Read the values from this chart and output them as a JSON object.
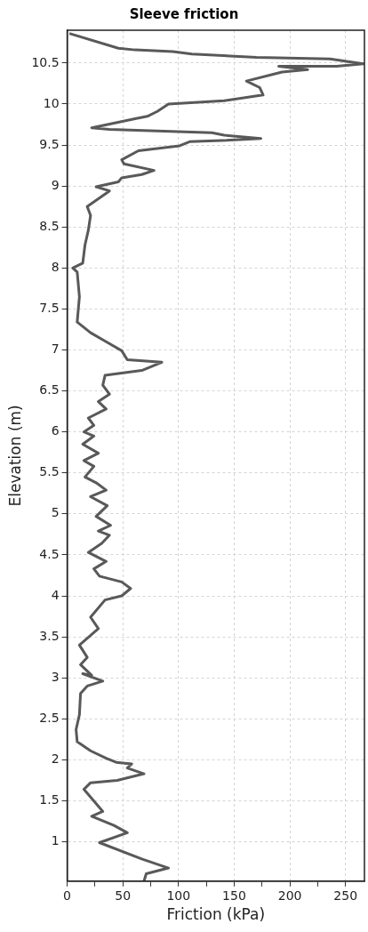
{
  "chart_data": {
    "type": "line",
    "title": "Sleeve friction",
    "xlabel": "Friction (kPa)",
    "ylabel": "Elevation (m)",
    "xlim": [
      0,
      267
    ],
    "ylim": [
      0.52,
      10.9
    ],
    "xticks": [
      0,
      {
        "value": 25,
        "label": null
      },
      50,
      {
        "value": 75,
        "label": null
      },
      100,
      {
        "value": 125,
        "label": null
      },
      150,
      {
        "value": 175,
        "label": null
      },
      200,
      {
        "value": 225,
        "label": null
      },
      250
    ],
    "yticks": [
      1,
      1.5,
      2,
      2.5,
      3,
      3.5,
      4,
      4.5,
      5,
      5.5,
      6,
      6.5,
      7,
      7.5,
      8,
      8.5,
      9,
      9.5,
      10,
      10.5
    ],
    "grid": true,
    "marker": "none",
    "legend": false,
    "series": [
      {
        "color": "#595959",
        "x": [
          2,
          46,
          61,
          95,
          112,
          170,
          236,
          266,
          242,
          190,
          216,
          193,
          161,
          173,
          176,
          141,
          91,
          81,
          72,
          61,
          22,
          38,
          130,
          141,
          174,
          147,
          110,
          101,
          64,
          49,
          51,
          78,
          67,
          49,
          46,
          26,
          38,
          18,
          21,
          19,
          16,
          14,
          5,
          9,
          11,
          9,
          21,
          35,
          49,
          54,
          85,
          67,
          34,
          32,
          38,
          28,
          35,
          19,
          24,
          15,
          24,
          14,
          28,
          15,
          24,
          16,
          26,
          35,
          21,
          36,
          26,
          39,
          28,
          38,
          31,
          19,
          35,
          24,
          29,
          49,
          57,
          49,
          34,
          21,
          28,
          11,
          18,
          12,
          22,
          14,
          32,
          18,
          12,
          11,
          8,
          9,
          21,
          35,
          44,
          58,
          54,
          69,
          45,
          21,
          15,
          22,
          32,
          22,
          42,
          54,
          29,
          67,
          91,
          71,
          69
        ],
        "values": [
          10.86,
          10.68,
          10.66,
          10.64,
          10.61,
          10.57,
          10.55,
          10.49,
          10.46,
          10.46,
          10.42,
          10.39,
          10.28,
          10.2,
          10.11,
          10.04,
          10.0,
          9.91,
          9.85,
          9.82,
          9.71,
          9.69,
          9.65,
          9.62,
          9.58,
          9.56,
          9.54,
          9.49,
          9.43,
          9.32,
          9.27,
          9.19,
          9.14,
          9.1,
          9.05,
          8.99,
          8.94,
          8.75,
          8.64,
          8.46,
          8.28,
          8.06,
          8.0,
          7.95,
          7.65,
          7.34,
          7.21,
          7.1,
          6.99,
          6.88,
          6.85,
          6.75,
          6.69,
          6.57,
          6.46,
          6.37,
          6.28,
          6.17,
          6.08,
          6.0,
          5.95,
          5.85,
          5.74,
          5.65,
          5.58,
          5.45,
          5.38,
          5.29,
          5.21,
          5.1,
          4.97,
          4.86,
          4.79,
          4.74,
          4.64,
          4.53,
          4.42,
          4.33,
          4.24,
          4.17,
          4.09,
          4.0,
          3.95,
          3.74,
          3.6,
          3.4,
          3.25,
          3.16,
          3.03,
          3.05,
          2.96,
          2.9,
          2.81,
          2.55,
          2.37,
          2.22,
          2.11,
          2.02,
          1.97,
          1.95,
          1.9,
          1.83,
          1.75,
          1.72,
          1.64,
          1.53,
          1.37,
          1.31,
          1.2,
          1.11,
          0.99,
          0.79,
          0.68,
          0.61,
          0.52
        ]
      }
    ]
  }
}
